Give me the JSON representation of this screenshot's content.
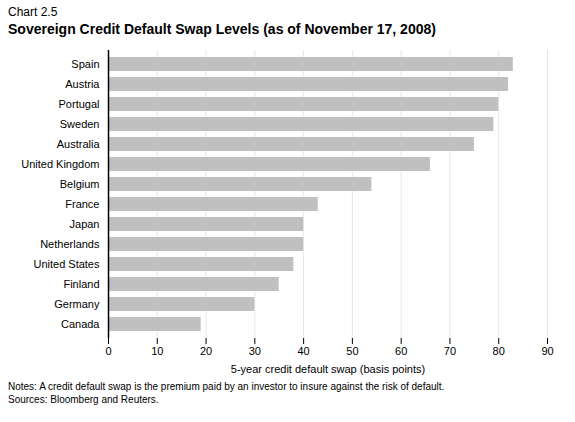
{
  "chart_data": {
    "type": "bar",
    "orientation": "horizontal",
    "chart_label": "Chart 2.5",
    "title": "Sovereign Credit Default Swap Levels (as of November 17, 2008)",
    "categories": [
      "Canada",
      "Germany",
      "Finland",
      "United States",
      "Netherlands",
      "Japan",
      "France",
      "Belgium",
      "United Kingdom",
      "Australia",
      "Sweden",
      "Portugal",
      "Austria",
      "Spain"
    ],
    "values": [
      19,
      30,
      35,
      38,
      40,
      40,
      43,
      54,
      66,
      75,
      79,
      80,
      82,
      83
    ],
    "color": "#c0c0c0",
    "xlabel": "5-year credit default swap (basis points)",
    "xlim": [
      0,
      90
    ],
    "xticks": [
      0,
      10,
      20,
      30,
      40,
      50,
      60,
      70,
      80,
      90
    ],
    "grid": true,
    "notes": [
      "Notes: A credit default swap is the premium paid by an investor to insure against the risk of default.",
      "Sources: Bloomberg and Reuters."
    ]
  }
}
